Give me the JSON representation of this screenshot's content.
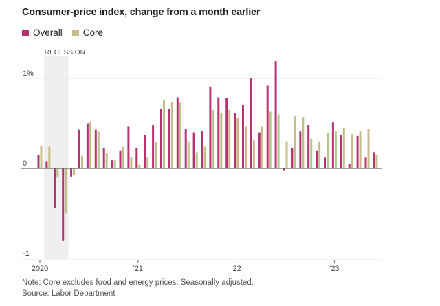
{
  "chart_data": {
    "type": "bar",
    "title": "Consumer-price index, change from a month earlier",
    "xlabel": "",
    "ylabel": "",
    "ylim": [
      -1,
      1.2
    ],
    "yticks": [
      {
        "value": 1,
        "label": "1%"
      },
      {
        "value": 0,
        "label": "0"
      },
      {
        "value": -1,
        "label": "-1"
      }
    ],
    "xticks": [
      {
        "index": 0,
        "label": "2020"
      },
      {
        "index": 12,
        "label": "'21"
      },
      {
        "index": 24,
        "label": "'22"
      },
      {
        "index": 36,
        "label": "'23"
      }
    ],
    "categories": [
      "Jan 2020",
      "Feb 2020",
      "Mar 2020",
      "Apr 2020",
      "May 2020",
      "Jun 2020",
      "Jul 2020",
      "Aug 2020",
      "Sep 2020",
      "Oct 2020",
      "Nov 2020",
      "Dec 2020",
      "Jan 2021",
      "Feb 2021",
      "Mar 2021",
      "Apr 2021",
      "May 2021",
      "Jun 2021",
      "Jul 2021",
      "Aug 2021",
      "Sep 2021",
      "Oct 2021",
      "Nov 2021",
      "Dec 2021",
      "Jan 2022",
      "Feb 2022",
      "Mar 2022",
      "Apr 2022",
      "May 2022",
      "Jun 2022",
      "Jul 2022",
      "Aug 2022",
      "Sep 2022",
      "Oct 2022",
      "Nov 2022",
      "Dec 2022",
      "Jan 2023",
      "Feb 2023",
      "Mar 2023",
      "Apr 2023",
      "May 2023",
      "Jun 2023"
    ],
    "series": [
      {
        "name": "Overall",
        "color": "#b5346f",
        "values": [
          0.15,
          0.08,
          -0.44,
          -0.8,
          -0.09,
          0.43,
          0.5,
          0.43,
          0.23,
          0.09,
          0.2,
          0.47,
          0.23,
          0.37,
          0.48,
          0.66,
          0.66,
          0.79,
          0.44,
          0.4,
          0.42,
          0.91,
          0.79,
          0.78,
          0.61,
          0.71,
          1.0,
          0.4,
          0.92,
          1.19,
          -0.02,
          0.23,
          0.41,
          0.48,
          0.2,
          0.12,
          0.51,
          0.37,
          0.05,
          0.36,
          0.12,
          0.18
        ]
      },
      {
        "name": "Core",
        "color": "#c4bd8a",
        "values": [
          0.25,
          0.24,
          -0.1,
          -0.5,
          -0.07,
          0.14,
          0.52,
          0.41,
          0.17,
          0.1,
          0.24,
          0.13,
          0.04,
          0.12,
          0.29,
          0.76,
          0.74,
          0.73,
          0.3,
          0.18,
          0.24,
          0.65,
          0.62,
          0.65,
          0.56,
          0.47,
          0.31,
          0.47,
          0.63,
          0.6,
          0.3,
          0.58,
          0.57,
          0.33,
          0.3,
          0.39,
          0.41,
          0.45,
          0.38,
          0.41,
          0.44,
          0.15
        ]
      }
    ],
    "annotations": [
      {
        "label": "RECESSION",
        "from_index": 1,
        "to_index": 3
      }
    ],
    "legend": "top-left",
    "grid": true
  },
  "notes": {
    "note": "Note: Core excludes food and energy prices. Seasonally adjusted.",
    "source": "Source: Labor Department"
  }
}
